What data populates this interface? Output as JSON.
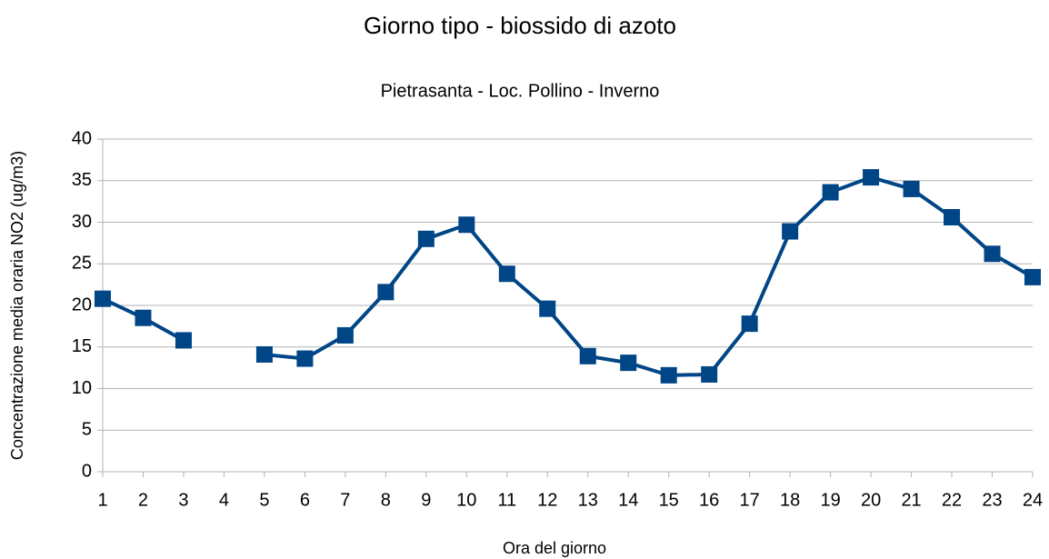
{
  "chart_data": {
    "type": "line",
    "title": "Giorno tipo - biossido di azoto",
    "subtitle": "Pietrasanta - Loc. Pollino - Inverno",
    "x_label": "Ora del giorno",
    "y_label": "Concentrazione media oraria NO2 (ug/m3)",
    "x": [
      1,
      2,
      3,
      4,
      5,
      6,
      7,
      8,
      9,
      10,
      11,
      12,
      13,
      14,
      15,
      16,
      17,
      18,
      19,
      20,
      21,
      22,
      23,
      24
    ],
    "series": [
      {
        "name": "NO2",
        "color": "#004586",
        "values": [
          20.8,
          18.5,
          15.8,
          null,
          14.1,
          13.6,
          16.4,
          21.6,
          28,
          29.7,
          23.8,
          19.6,
          13.9,
          13.1,
          11.6,
          11.7,
          17.8,
          28.9,
          33.6,
          35.4,
          34,
          30.6,
          26.2,
          23.4
        ]
      }
    ],
    "xlim": [
      1,
      24
    ],
    "xticks": [
      1,
      2,
      3,
      4,
      5,
      6,
      7,
      8,
      9,
      10,
      11,
      12,
      13,
      14,
      15,
      16,
      17,
      18,
      19,
      20,
      21,
      22,
      23,
      24
    ],
    "ylim": [
      0,
      40
    ],
    "yticks": [
      0,
      5,
      10,
      15,
      20,
      25,
      30,
      35,
      40
    ],
    "grid": true
  }
}
